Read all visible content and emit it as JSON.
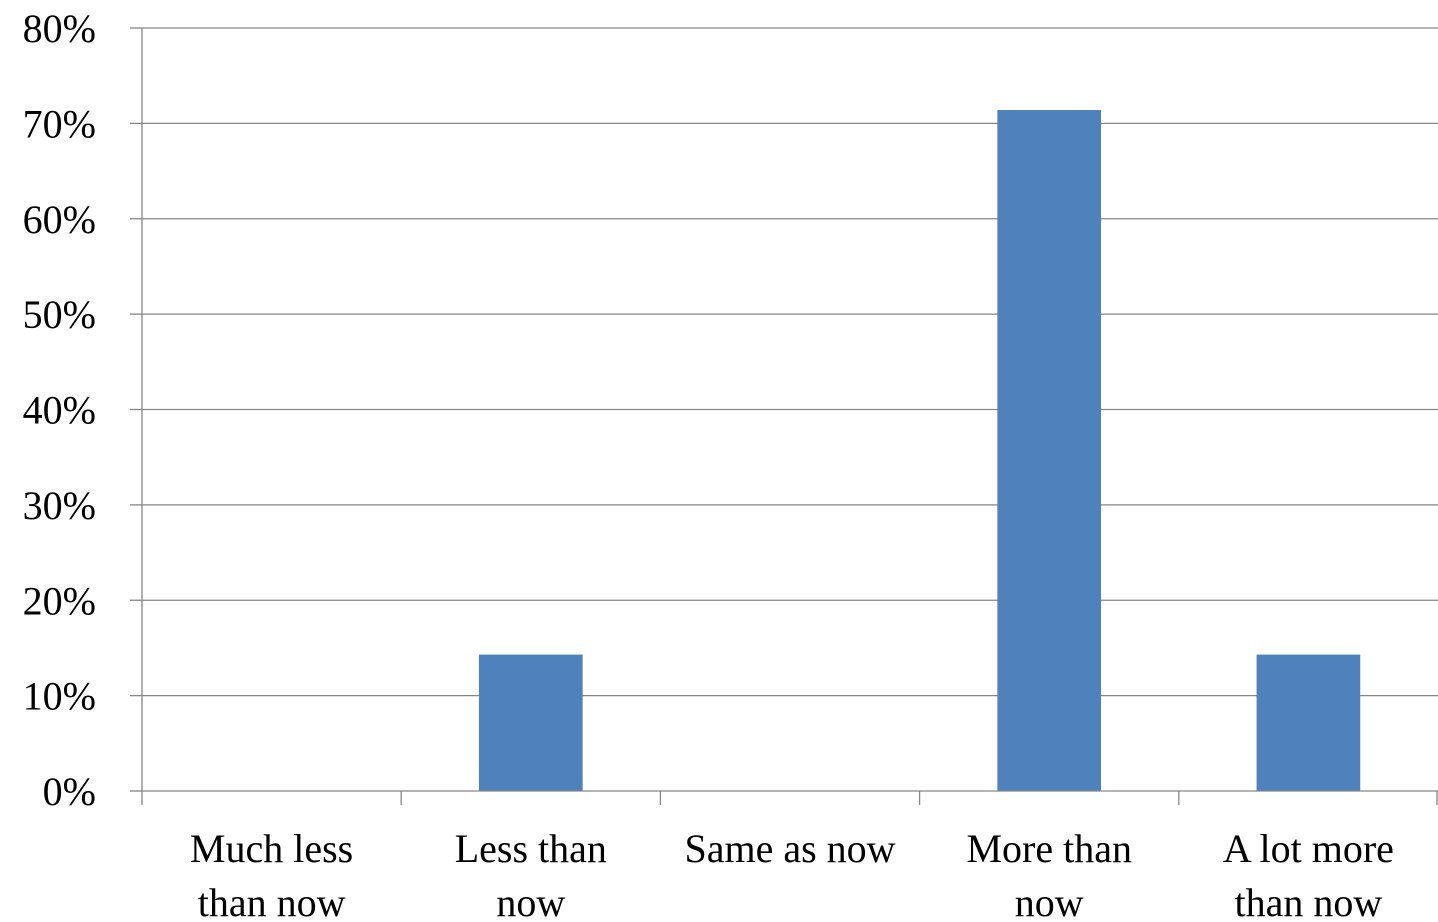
{
  "chart_data": {
    "type": "bar",
    "title": "",
    "xlabel": "",
    "ylabel": "",
    "categories": [
      [
        "Much less",
        "than now"
      ],
      [
        "Less than",
        "now"
      ],
      [
        "Same as now"
      ],
      [
        "More than",
        "now"
      ],
      [
        "A lot more",
        "than now"
      ]
    ],
    "values": [
      0,
      14.3,
      0,
      71.4,
      14.3
    ],
    "ylim": [
      0,
      80
    ],
    "y_ticks": [
      0,
      10,
      20,
      30,
      40,
      50,
      60,
      70,
      80
    ],
    "y_tick_format": "percent",
    "grid": true,
    "legend": "none",
    "colors": {
      "bar": "#4f81bd",
      "grid": "#868686"
    }
  }
}
